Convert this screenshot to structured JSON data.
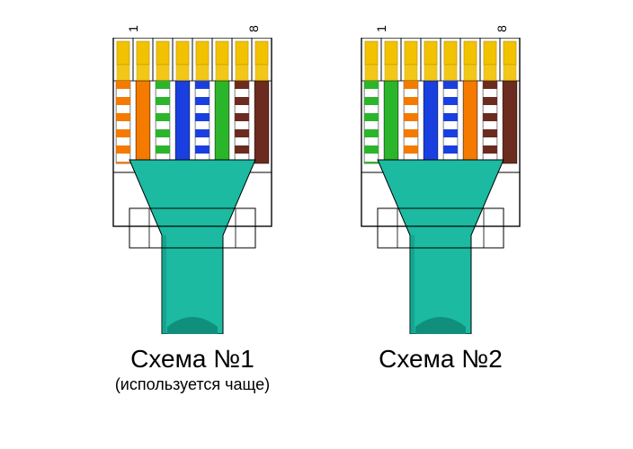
{
  "background_color": "#ffffff",
  "common": {
    "pin_label_first": "1",
    "pin_label_last": "8",
    "cable_jacket_color": "#1bbaa1",
    "cable_jacket_dark": "#0f8f7c",
    "connector_outline": "#000000",
    "connector_fill": "#ffffff",
    "gold_pin_color": "#f2c200",
    "gold_pin_outline": "#b58f00",
    "stripe_colors": {
      "orange": "#f47a00",
      "green": "#2bb52b",
      "blue": "#1a3fe0",
      "brown": "#6b2b1e",
      "white": "#ffffff"
    }
  },
  "schemes": [
    {
      "id": "scheme-1",
      "title": "Схема №1",
      "subtitle": "(используется чаще)",
      "wires": [
        {
          "type": "striped",
          "color": "#f47a00"
        },
        {
          "type": "solid",
          "color": "#f47a00"
        },
        {
          "type": "striped",
          "color": "#2bb52b"
        },
        {
          "type": "solid",
          "color": "#1a3fe0"
        },
        {
          "type": "striped",
          "color": "#1a3fe0"
        },
        {
          "type": "solid",
          "color": "#2bb52b"
        },
        {
          "type": "striped",
          "color": "#6b2b1e"
        },
        {
          "type": "solid",
          "color": "#6b2b1e"
        }
      ]
    },
    {
      "id": "scheme-2",
      "title": "Схема №2",
      "subtitle": "",
      "wires": [
        {
          "type": "striped",
          "color": "#2bb52b"
        },
        {
          "type": "solid",
          "color": "#2bb52b"
        },
        {
          "type": "striped",
          "color": "#f47a00"
        },
        {
          "type": "solid",
          "color": "#1a3fe0"
        },
        {
          "type": "striped",
          "color": "#1a3fe0"
        },
        {
          "type": "solid",
          "color": "#f47a00"
        },
        {
          "type": "striped",
          "color": "#6b2b1e"
        },
        {
          "type": "solid",
          "color": "#6b2b1e"
        }
      ]
    }
  ]
}
